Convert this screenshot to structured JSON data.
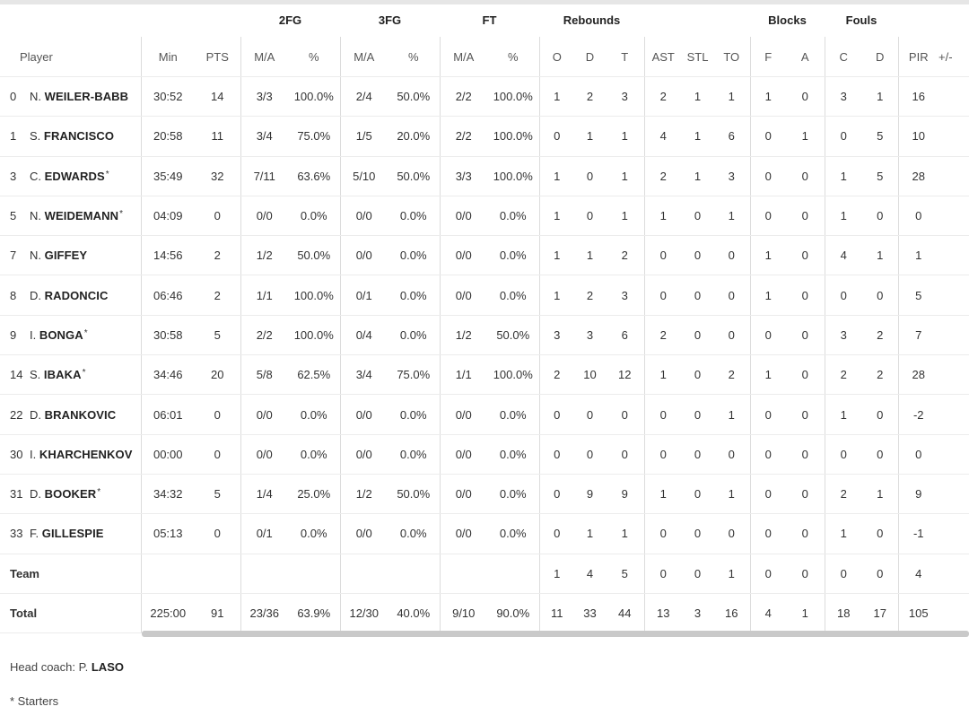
{
  "groups": {
    "two_fg": "2FG",
    "three_fg": "3FG",
    "ft": "FT",
    "rebounds": "Rebounds",
    "blocks": "Blocks",
    "fouls": "Fouls"
  },
  "headers": {
    "player": "Player",
    "min": "Min",
    "pts": "PTS",
    "fg2_ma": "M/A",
    "fg2_pct": "%",
    "fg3_ma": "M/A",
    "fg3_pct": "%",
    "ft_ma": "M/A",
    "ft_pct": "%",
    "reb_o": "O",
    "reb_d": "D",
    "reb_t": "T",
    "ast": "AST",
    "stl": "STL",
    "to": "TO",
    "blk_f": "F",
    "blk_a": "A",
    "foul_c": "C",
    "foul_d": "D",
    "pir": "PIR",
    "pm": "+/-"
  },
  "players": [
    {
      "num": "0",
      "first": "N.",
      "last": "WEILER-BABB",
      "starter": false,
      "min": "30:52",
      "pts": "14",
      "fg2": "3/3",
      "fg2p": "100.0%",
      "fg3": "2/4",
      "fg3p": "50.0%",
      "ft": "2/2",
      "ftp": "100.0%",
      "o": "1",
      "d": "2",
      "t": "3",
      "ast": "2",
      "stl": "1",
      "to": "1",
      "bf": "1",
      "ba": "0",
      "fc": "3",
      "fd": "1",
      "pir": "16",
      "pm": ""
    },
    {
      "num": "1",
      "first": "S.",
      "last": "FRANCISCO",
      "starter": false,
      "min": "20:58",
      "pts": "11",
      "fg2": "3/4",
      "fg2p": "75.0%",
      "fg3": "1/5",
      "fg3p": "20.0%",
      "ft": "2/2",
      "ftp": "100.0%",
      "o": "0",
      "d": "1",
      "t": "1",
      "ast": "4",
      "stl": "1",
      "to": "6",
      "bf": "0",
      "ba": "1",
      "fc": "0",
      "fd": "5",
      "pir": "10",
      "pm": ""
    },
    {
      "num": "3",
      "first": "C.",
      "last": "EDWARDS",
      "starter": true,
      "min": "35:49",
      "pts": "32",
      "fg2": "7/11",
      "fg2p": "63.6%",
      "fg3": "5/10",
      "fg3p": "50.0%",
      "ft": "3/3",
      "ftp": "100.0%",
      "o": "1",
      "d": "0",
      "t": "1",
      "ast": "2",
      "stl": "1",
      "to": "3",
      "bf": "0",
      "ba": "0",
      "fc": "1",
      "fd": "5",
      "pir": "28",
      "pm": ""
    },
    {
      "num": "5",
      "first": "N.",
      "last": "WEIDEMANN",
      "starter": true,
      "min": "04:09",
      "pts": "0",
      "fg2": "0/0",
      "fg2p": "0.0%",
      "fg3": "0/0",
      "fg3p": "0.0%",
      "ft": "0/0",
      "ftp": "0.0%",
      "o": "1",
      "d": "0",
      "t": "1",
      "ast": "1",
      "stl": "0",
      "to": "1",
      "bf": "0",
      "ba": "0",
      "fc": "1",
      "fd": "0",
      "pir": "0",
      "pm": ""
    },
    {
      "num": "7",
      "first": "N.",
      "last": "GIFFEY",
      "starter": false,
      "min": "14:56",
      "pts": "2",
      "fg2": "1/2",
      "fg2p": "50.0%",
      "fg3": "0/0",
      "fg3p": "0.0%",
      "ft": "0/0",
      "ftp": "0.0%",
      "o": "1",
      "d": "1",
      "t": "2",
      "ast": "0",
      "stl": "0",
      "to": "0",
      "bf": "1",
      "ba": "0",
      "fc": "4",
      "fd": "1",
      "pir": "1",
      "pm": ""
    },
    {
      "num": "8",
      "first": "D.",
      "last": "RADONCIC",
      "starter": false,
      "min": "06:46",
      "pts": "2",
      "fg2": "1/1",
      "fg2p": "100.0%",
      "fg3": "0/1",
      "fg3p": "0.0%",
      "ft": "0/0",
      "ftp": "0.0%",
      "o": "1",
      "d": "2",
      "t": "3",
      "ast": "0",
      "stl": "0",
      "to": "0",
      "bf": "1",
      "ba": "0",
      "fc": "0",
      "fd": "0",
      "pir": "5",
      "pm": ""
    },
    {
      "num": "9",
      "first": "I.",
      "last": "BONGA",
      "starter": true,
      "min": "30:58",
      "pts": "5",
      "fg2": "2/2",
      "fg2p": "100.0%",
      "fg3": "0/4",
      "fg3p": "0.0%",
      "ft": "1/2",
      "ftp": "50.0%",
      "o": "3",
      "d": "3",
      "t": "6",
      "ast": "2",
      "stl": "0",
      "to": "0",
      "bf": "0",
      "ba": "0",
      "fc": "3",
      "fd": "2",
      "pir": "7",
      "pm": ""
    },
    {
      "num": "14",
      "first": "S.",
      "last": "IBAKA",
      "starter": true,
      "min": "34:46",
      "pts": "20",
      "fg2": "5/8",
      "fg2p": "62.5%",
      "fg3": "3/4",
      "fg3p": "75.0%",
      "ft": "1/1",
      "ftp": "100.0%",
      "o": "2",
      "d": "10",
      "t": "12",
      "ast": "1",
      "stl": "0",
      "to": "2",
      "bf": "1",
      "ba": "0",
      "fc": "2",
      "fd": "2",
      "pir": "28",
      "pm": ""
    },
    {
      "num": "22",
      "first": "D.",
      "last": "BRANKOVIC",
      "starter": false,
      "min": "06:01",
      "pts": "0",
      "fg2": "0/0",
      "fg2p": "0.0%",
      "fg3": "0/0",
      "fg3p": "0.0%",
      "ft": "0/0",
      "ftp": "0.0%",
      "o": "0",
      "d": "0",
      "t": "0",
      "ast": "0",
      "stl": "0",
      "to": "1",
      "bf": "0",
      "ba": "0",
      "fc": "1",
      "fd": "0",
      "pir": "-2",
      "pm": ""
    },
    {
      "num": "30",
      "first": "I.",
      "last": "KHARCHENKOV",
      "starter": false,
      "min": "00:00",
      "pts": "0",
      "fg2": "0/0",
      "fg2p": "0.0%",
      "fg3": "0/0",
      "fg3p": "0.0%",
      "ft": "0/0",
      "ftp": "0.0%",
      "o": "0",
      "d": "0",
      "t": "0",
      "ast": "0",
      "stl": "0",
      "to": "0",
      "bf": "0",
      "ba": "0",
      "fc": "0",
      "fd": "0",
      "pir": "0",
      "pm": ""
    },
    {
      "num": "31",
      "first": "D.",
      "last": "BOOKER",
      "starter": true,
      "min": "34:32",
      "pts": "5",
      "fg2": "1/4",
      "fg2p": "25.0%",
      "fg3": "1/2",
      "fg3p": "50.0%",
      "ft": "0/0",
      "ftp": "0.0%",
      "o": "0",
      "d": "9",
      "t": "9",
      "ast": "1",
      "stl": "0",
      "to": "1",
      "bf": "0",
      "ba": "0",
      "fc": "2",
      "fd": "1",
      "pir": "9",
      "pm": ""
    },
    {
      "num": "33",
      "first": "F.",
      "last": "GILLESPIE",
      "starter": false,
      "min": "05:13",
      "pts": "0",
      "fg2": "0/1",
      "fg2p": "0.0%",
      "fg3": "0/0",
      "fg3p": "0.0%",
      "ft": "0/0",
      "ftp": "0.0%",
      "o": "0",
      "d": "1",
      "t": "1",
      "ast": "0",
      "stl": "0",
      "to": "0",
      "bf": "0",
      "ba": "0",
      "fc": "1",
      "fd": "0",
      "pir": "-1",
      "pm": ""
    }
  ],
  "team": {
    "label": "Team",
    "min": "",
    "pts": "",
    "fg2": "",
    "fg2p": "",
    "fg3": "",
    "fg3p": "",
    "ft": "",
    "ftp": "",
    "o": "1",
    "d": "4",
    "t": "5",
    "ast": "0",
    "stl": "0",
    "to": "1",
    "bf": "0",
    "ba": "0",
    "fc": "0",
    "fd": "0",
    "pir": "4",
    "pm": ""
  },
  "total": {
    "label": "Total",
    "min": "225:00",
    "pts": "91",
    "fg2": "23/36",
    "fg2p": "63.9%",
    "fg3": "12/30",
    "fg3p": "40.0%",
    "ft": "9/10",
    "ftp": "90.0%",
    "o": "11",
    "d": "33",
    "t": "44",
    "ast": "13",
    "stl": "3",
    "to": "16",
    "bf": "4",
    "ba": "1",
    "fc": "18",
    "fd": "17",
    "pir": "105",
    "pm": ""
  },
  "footer": {
    "coach_label": "Head coach:",
    "coach_first": "P.",
    "coach_last": "LASO",
    "starters_note": "* Starters",
    "starter_mark": "*"
  }
}
